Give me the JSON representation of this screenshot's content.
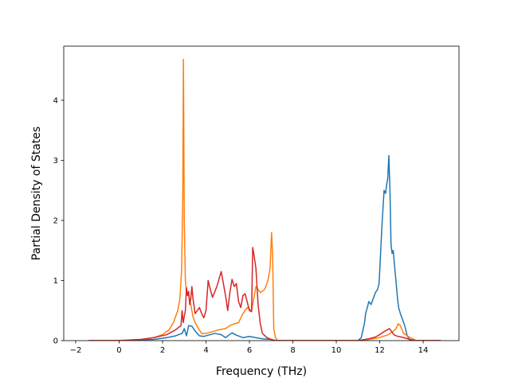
{
  "chart_data": {
    "type": "line",
    "title": "",
    "xlabel": "Frequency (THz)",
    "ylabel": "Partial Density of States",
    "xlim": [
      -2.55,
      15.65
    ],
    "ylim": [
      0,
      4.9
    ],
    "xticks": [
      -2,
      0,
      2,
      4,
      6,
      8,
      10,
      12,
      14
    ],
    "yticks": [
      0,
      1,
      2,
      3,
      4
    ],
    "grid": false,
    "legend": "none",
    "series": [
      {
        "color": "#1f77b4",
        "x": [
          -1.4,
          0,
          1.0,
          1.6,
          2.2,
          2.6,
          2.9,
          3.0,
          3.1,
          3.2,
          3.35,
          3.5,
          3.7,
          3.9,
          4.1,
          4.4,
          4.7,
          4.9,
          5.05,
          5.2,
          5.4,
          5.7,
          6.0,
          6.3,
          6.6,
          7.0,
          7.2,
          7.4,
          11.0,
          11.15,
          11.3,
          11.35,
          11.5,
          11.6,
          11.7,
          11.8,
          11.9,
          11.97,
          12.1,
          12.2,
          12.27,
          12.32,
          12.37,
          12.42,
          12.47,
          12.52,
          12.57,
          12.62,
          12.67,
          12.72,
          12.77,
          12.82,
          12.87,
          12.95,
          13.05,
          13.15,
          13.25,
          13.35,
          13.45,
          13.55,
          13.7,
          14.0,
          14.8
        ],
        "y": [
          0,
          0,
          0.01,
          0.02,
          0.05,
          0.08,
          0.12,
          0.2,
          0.08,
          0.25,
          0.24,
          0.16,
          0.08,
          0.07,
          0.09,
          0.12,
          0.1,
          0.05,
          0.09,
          0.13,
          0.09,
          0.05,
          0.07,
          0.05,
          0.03,
          0.02,
          0,
          0,
          0,
          0.05,
          0.3,
          0.45,
          0.65,
          0.6,
          0.7,
          0.8,
          0.85,
          0.95,
          1.9,
          2.5,
          2.45,
          2.6,
          2.7,
          3.08,
          2.5,
          1.6,
          1.45,
          1.5,
          1.3,
          1.1,
          0.9,
          0.7,
          0.55,
          0.45,
          0.35,
          0.25,
          0.1,
          0.02,
          0,
          0,
          0,
          0,
          0
        ]
      },
      {
        "color": "#ff7f0e",
        "x": [
          -1.4,
          0,
          1.0,
          1.6,
          2.0,
          2.3,
          2.5,
          2.7,
          2.8,
          2.88,
          2.93,
          2.96,
          3.0,
          3.05,
          3.1,
          3.2,
          3.3,
          3.4,
          3.5,
          3.65,
          3.8,
          4.0,
          4.3,
          4.6,
          4.9,
          5.1,
          5.3,
          5.5,
          5.7,
          5.9,
          6.1,
          6.3,
          6.5,
          6.7,
          6.85,
          6.95,
          7.02,
          7.07,
          7.12,
          7.2,
          7.3,
          11.0,
          11.5,
          12.0,
          12.4,
          12.6,
          12.75,
          12.85,
          12.95,
          13.1,
          13.4,
          13.7,
          14.8
        ],
        "y": [
          0,
          0,
          0.02,
          0.05,
          0.1,
          0.18,
          0.3,
          0.5,
          0.7,
          1.2,
          2.4,
          4.68,
          2.0,
          1.0,
          0.8,
          0.75,
          0.6,
          0.4,
          0.3,
          0.2,
          0.12,
          0.12,
          0.15,
          0.18,
          0.2,
          0.25,
          0.28,
          0.3,
          0.45,
          0.55,
          0.5,
          0.9,
          0.8,
          0.85,
          1.0,
          1.2,
          1.8,
          1.4,
          0.2,
          0.05,
          0,
          0,
          0.02,
          0.05,
          0.1,
          0.15,
          0.2,
          0.28,
          0.25,
          0.12,
          0.05,
          0,
          0
        ]
      },
      {
        "color": "#d62728",
        "x": [
          -1.4,
          0,
          1.0,
          1.6,
          2.2,
          2.6,
          2.85,
          2.9,
          2.95,
          3.0,
          3.05,
          3.1,
          3.15,
          3.2,
          3.25,
          3.3,
          3.35,
          3.4,
          3.5,
          3.6,
          3.7,
          3.8,
          3.9,
          4.0,
          4.1,
          4.2,
          4.3,
          4.5,
          4.7,
          4.8,
          4.9,
          5.0,
          5.1,
          5.2,
          5.3,
          5.4,
          5.5,
          5.6,
          5.7,
          5.8,
          6.0,
          6.1,
          6.15,
          6.2,
          6.3,
          6.4,
          6.5,
          6.6,
          6.8,
          7.0,
          7.2,
          11.0,
          11.5,
          11.8,
          12.0,
          12.2,
          12.35,
          12.45,
          12.55,
          12.65,
          12.75,
          12.85,
          13.0,
          13.2,
          13.4,
          13.6,
          14.8
        ],
        "y": [
          0,
          0,
          0.02,
          0.05,
          0.1,
          0.18,
          0.25,
          0.5,
          0.3,
          0.4,
          0.5,
          0.88,
          0.75,
          0.82,
          0.6,
          0.7,
          0.9,
          0.7,
          0.45,
          0.5,
          0.55,
          0.45,
          0.38,
          0.5,
          1.0,
          0.85,
          0.72,
          0.9,
          1.15,
          0.95,
          0.75,
          0.5,
          0.8,
          1.02,
          0.9,
          0.95,
          0.65,
          0.55,
          0.75,
          0.78,
          0.5,
          0.48,
          1.55,
          1.45,
          1.2,
          0.6,
          0.28,
          0.12,
          0.05,
          0.02,
          0,
          0,
          0.03,
          0.06,
          0.1,
          0.15,
          0.18,
          0.2,
          0.15,
          0.1,
          0.08,
          0.07,
          0.06,
          0.04,
          0.02,
          0,
          0
        ]
      }
    ]
  }
}
